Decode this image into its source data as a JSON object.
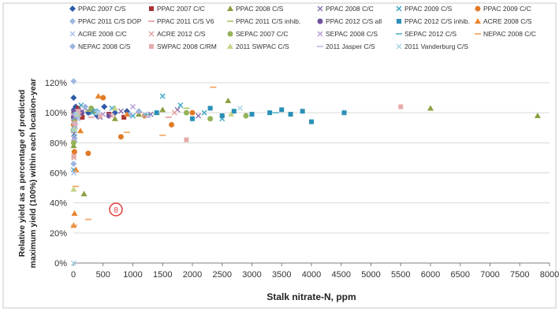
{
  "chart_data": {
    "type": "scatter",
    "title": "",
    "xlabel": "Stalk nitrate-N, ppm",
    "ylabel": "Relative yield as a percentage of predicted maximum yield (100%) within each location-year",
    "xlim": [
      0,
      8000
    ],
    "ylim": [
      0,
      120
    ],
    "x_ticks": [
      "0",
      "500",
      "1000",
      "1500",
      "2000",
      "2500",
      "3000",
      "3500",
      "4000",
      "4500",
      "5000",
      "5500",
      "6000",
      "6500",
      "7000",
      "7500",
      "8000"
    ],
    "y_ticks": [
      "0%",
      "20%",
      "40%",
      "60%",
      "80%",
      "100%",
      "120%"
    ],
    "grid": "horizontal",
    "legend_position": "top",
    "annotation": "8",
    "series": [
      {
        "name": "PPAC 2007 C/S",
        "color": "#2e5aa8",
        "marker": "diamond",
        "points": [
          [
            5,
            110
          ],
          [
            10,
            102
          ],
          [
            20,
            95
          ],
          [
            40,
            104
          ],
          [
            60,
            99
          ],
          [
            120,
            101
          ],
          [
            250,
            100
          ],
          [
            400,
            98
          ],
          [
            520,
            104
          ],
          [
            700,
            100
          ],
          [
            900,
            101
          ]
        ]
      },
      {
        "name": "PPAC 2007 C/C",
        "color": "#a83232",
        "marker": "square",
        "points": [
          [
            8,
            100
          ],
          [
            15,
            92
          ],
          [
            30,
            98
          ],
          [
            80,
            103
          ],
          [
            150,
            97
          ],
          [
            300,
            102
          ],
          [
            600,
            99
          ],
          [
            850,
            97
          ]
        ]
      },
      {
        "name": "PPAC 2008 C/S",
        "color": "#8aa040",
        "marker": "triangle",
        "points": [
          [
            5,
            78
          ],
          [
            12,
            88
          ],
          [
            25,
            96
          ],
          [
            60,
            100
          ],
          [
            180,
            46
          ],
          [
            350,
            101
          ],
          [
            700,
            96
          ],
          [
            1100,
            99
          ],
          [
            1500,
            102
          ],
          [
            2600,
            108
          ],
          [
            6000,
            103
          ],
          [
            7800,
            98
          ]
        ]
      },
      {
        "name": "PPAC 2008 C/C",
        "color": "#8a6db0",
        "marker": "x",
        "points": [
          [
            10,
            86
          ],
          [
            30,
            94
          ],
          [
            70,
            100
          ],
          [
            200,
            103
          ],
          [
            450,
            97
          ],
          [
            800,
            101
          ],
          [
            1300,
            99
          ],
          [
            1750,
            102
          ],
          [
            2100,
            98
          ]
        ]
      },
      {
        "name": "PPAC 2009 C/S",
        "color": "#3aa6c4",
        "marker": "x",
        "points": [
          [
            5,
            62
          ],
          [
            20,
            84
          ],
          [
            50,
            98
          ],
          [
            130,
            105
          ],
          [
            320,
            100
          ],
          [
            650,
            103
          ],
          [
            1000,
            98
          ],
          [
            1500,
            111
          ],
          [
            1800,
            105
          ],
          [
            2200,
            100
          ],
          [
            2500,
            96
          ]
        ]
      },
      {
        "name": "PPAC 2009 C/C",
        "color": "#e07a28",
        "marker": "circle",
        "points": [
          [
            5,
            92
          ],
          [
            18,
            74
          ],
          [
            40,
            99
          ],
          [
            90,
            101
          ],
          [
            250,
            73
          ],
          [
            500,
            110
          ],
          [
            800,
            84
          ],
          [
            1200,
            98
          ],
          [
            1650,
            92
          ],
          [
            2000,
            100
          ]
        ]
      },
      {
        "name": "PPAC 2011 C/S DOP",
        "color": "#9db8e0",
        "marker": "diamond",
        "points": [
          [
            5,
            121
          ],
          [
            15,
            96
          ],
          [
            35,
            100
          ],
          [
            90,
            98
          ],
          [
            400,
            101
          ],
          [
            950,
            99
          ]
        ]
      },
      {
        "name": "PPAC 2011 C/S V6",
        "color": "#e29a9a",
        "marker": "dash",
        "points": [
          [
            8,
            95
          ],
          [
            25,
            99
          ],
          [
            70,
            102
          ],
          [
            300,
            97
          ],
          [
            1100,
            100
          ],
          [
            1600,
            97
          ]
        ]
      },
      {
        "name": "PPAC 2011 C/S inhib.",
        "color": "#a4c26a",
        "marker": "dash",
        "points": [
          [
            6,
            89
          ],
          [
            22,
            98
          ],
          [
            60,
            100
          ],
          [
            250,
            101
          ],
          [
            1400,
            99
          ],
          [
            1900,
            103
          ]
        ]
      },
      {
        "name": "PPAC 2012 C/S all",
        "color": "#7052a0",
        "marker": "circle",
        "points": [
          [
            5,
            97
          ],
          [
            18,
            101
          ],
          [
            45,
            99
          ],
          [
            140,
            100
          ],
          [
            600,
            98
          ]
        ]
      },
      {
        "name": "PPAC 2012 C/S inhib.",
        "color": "#2b8fb8",
        "marker": "square",
        "points": [
          [
            15,
            95
          ],
          [
            50,
            99
          ],
          [
            1400,
            100
          ],
          [
            2000,
            96
          ],
          [
            2300,
            103
          ],
          [
            2500,
            98
          ],
          [
            2700,
            101
          ],
          [
            3000,
            99
          ],
          [
            3300,
            100
          ],
          [
            3500,
            102
          ],
          [
            3650,
            99
          ],
          [
            3850,
            101
          ],
          [
            4000,
            94
          ],
          [
            4550,
            100
          ]
        ]
      },
      {
        "name": "ACRE 2008 C/S",
        "color": "#e8862e",
        "marker": "triangle",
        "points": [
          [
            5,
            25
          ],
          [
            20,
            33
          ],
          [
            45,
            62
          ],
          [
            120,
            88
          ],
          [
            420,
            111
          ],
          [
            900,
            99
          ]
        ]
      },
      {
        "name": "ACRE 2008 C/C",
        "color": "#a6c0e8",
        "marker": "x",
        "points": [
          [
            8,
            60
          ],
          [
            30,
            82
          ],
          [
            80,
            96
          ],
          [
            400,
            100
          ],
          [
            1200,
            99
          ]
        ]
      },
      {
        "name": "ACRE 2012 C/S",
        "color": "#e2a0a0",
        "marker": "x",
        "points": [
          [
            10,
            70
          ],
          [
            35,
            91
          ],
          [
            100,
            99
          ],
          [
            650,
            98
          ],
          [
            1700,
            100
          ]
        ]
      },
      {
        "name": "SEPAC 2007 C/C",
        "color": "#94b45a",
        "marker": "circle",
        "points": [
          [
            5,
            80
          ],
          [
            20,
            94
          ],
          [
            60,
            99
          ],
          [
            300,
            103
          ],
          [
            1900,
            100
          ],
          [
            2300,
            96
          ],
          [
            2900,
            98
          ]
        ]
      },
      {
        "name": "SEPAC 2008 C/S",
        "color": "#b49ad4",
        "marker": "x",
        "points": [
          [
            8,
            83
          ],
          [
            25,
            97
          ],
          [
            70,
            101
          ],
          [
            500,
            99
          ],
          [
            1000,
            104
          ]
        ]
      },
      {
        "name": "SEPAC 2012 C/S",
        "color": "#4eb0c8",
        "marker": "dash",
        "points": [
          [
            10,
            88
          ],
          [
            40,
            100
          ],
          [
            350,
            102
          ],
          [
            1250,
            99
          ],
          [
            3400,
            100
          ]
        ]
      },
      {
        "name": "NEPAC 2008 C/C",
        "color": "#f0a15a",
        "marker": "dash",
        "points": [
          [
            15,
            25
          ],
          [
            40,
            51
          ],
          [
            250,
            29
          ],
          [
            900,
            87
          ],
          [
            1500,
            85
          ],
          [
            2350,
            117
          ]
        ]
      },
      {
        "name": "NEPAC 2008 C/S",
        "color": "#9ab4e0",
        "marker": "diamond",
        "points": [
          [
            5,
            66
          ],
          [
            20,
            90
          ],
          [
            50,
            99
          ],
          [
            200,
            104
          ],
          [
            1100,
            101
          ]
        ]
      },
      {
        "name": "SWPAC 2008 C/RM",
        "color": "#e6aaaa",
        "marker": "square",
        "points": [
          [
            8,
            71
          ],
          [
            25,
            93
          ],
          [
            80,
            100
          ],
          [
            450,
            98
          ],
          [
            1900,
            82
          ],
          [
            5500,
            104
          ]
        ]
      },
      {
        "name": "2011 SWPAC C/S",
        "color": "#c4d68a",
        "marker": "triangle",
        "points": [
          [
            6,
            49
          ],
          [
            20,
            89
          ],
          [
            60,
            99
          ],
          [
            700,
            103
          ],
          [
            2650,
            99
          ]
        ]
      },
      {
        "name": "2011 Jasper C/S",
        "color": "#c8b4e0",
        "marker": "dash",
        "points": [
          [
            10,
            93
          ],
          [
            30,
            99
          ],
          [
            100,
            102
          ],
          [
            1250,
            97
          ]
        ]
      },
      {
        "name": "2011 Vanderburg C/S",
        "color": "#a4d4e6",
        "marker": "x",
        "points": [
          [
            5,
            0
          ],
          [
            18,
            88
          ],
          [
            55,
            99
          ],
          [
            420,
            100
          ],
          [
            2800,
            103
          ]
        ]
      }
    ]
  }
}
